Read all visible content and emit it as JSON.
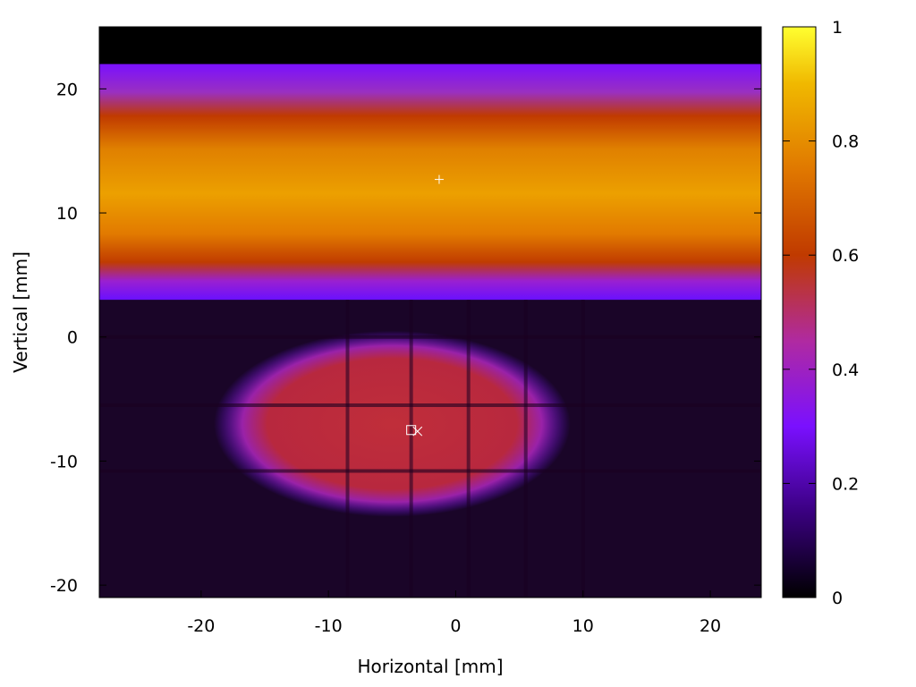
{
  "chart_data": {
    "type": "heatmap",
    "title": "",
    "xlabel": "Horizontal [mm]",
    "ylabel": "Vertical [mm]",
    "xlim": [
      -28,
      24
    ],
    "ylim": [
      -21,
      25
    ],
    "x_ticks": [
      -20,
      -10,
      0,
      10,
      20
    ],
    "y_ticks": [
      -20,
      -10,
      0,
      10,
      20
    ],
    "x_tick_labels": [
      "-20",
      "-10",
      "0",
      "10",
      "20"
    ],
    "y_tick_labels": [
      "-20",
      "-10",
      "0",
      "10",
      "20"
    ],
    "colorbar": {
      "range": [
        0,
        1
      ],
      "ticks": [
        0,
        0.2,
        0.4,
        0.6,
        0.8,
        1
      ],
      "tick_labels": [
        "0",
        "0.2",
        "0.4",
        "0.6",
        "0.8",
        "1"
      ],
      "palette": "black-purple-red-orange-yellow"
    },
    "regions": [
      {
        "name": "upper band",
        "y_range": [
          3,
          22
        ],
        "peak_intensity": 0.8
      },
      {
        "name": "lower ellipse",
        "center": [
          -5,
          -7
        ],
        "half_width": 14,
        "half_height": 7.5,
        "peak_intensity": 0.55
      },
      {
        "name": "background",
        "intensity": 0.08
      }
    ],
    "grid_lines": {
      "vertical_x": [
        -8.5,
        -3.5,
        1,
        5.5,
        10
      ],
      "horizontal_y": [
        0,
        -5.5,
        -10.8
      ]
    },
    "markers": [
      {
        "symbol": "+",
        "x": -1.3,
        "y": 12.7
      },
      {
        "symbol": "square",
        "x": -3.5,
        "y": -7.5
      },
      {
        "symbol": "x",
        "x": -3.0,
        "y": -7.6
      }
    ]
  }
}
